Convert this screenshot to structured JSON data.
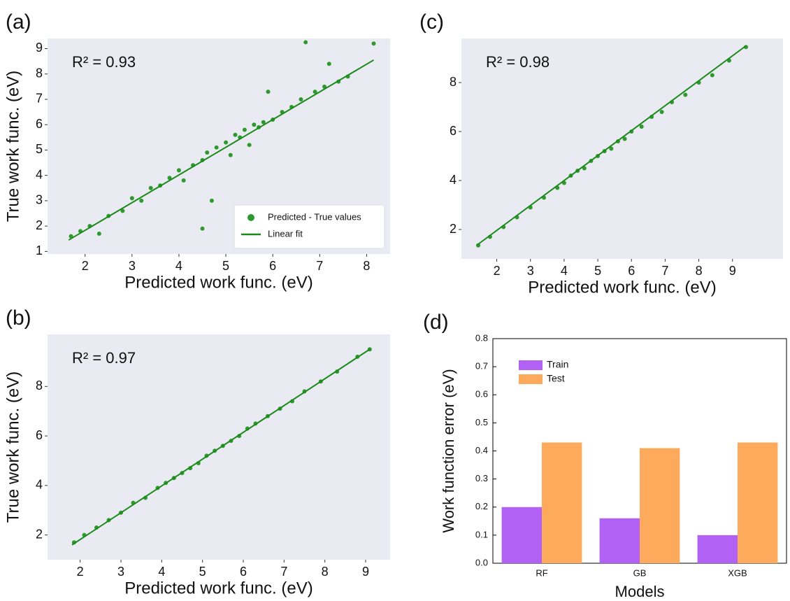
{
  "chart_data": [
    {
      "type": "scatter",
      "panel_label": "(a)",
      "annotation": "R² = 0.93",
      "x_label": "Predicted work func. (eV)",
      "y_label": "True work func. (eV)",
      "xlim": [
        1.2,
        8.5
      ],
      "ylim": [
        0.9,
        9.4
      ],
      "xticks": [
        2,
        3,
        4,
        5,
        6,
        7,
        8
      ],
      "yticks": [
        1,
        2,
        3,
        4,
        5,
        6,
        7,
        8,
        9
      ],
      "legend": "lower right",
      "series": [
        {
          "name": "Predicted - True values",
          "color": "#2e9a2e",
          "x": [
            1.7,
            1.9,
            2.1,
            2.3,
            2.5,
            2.8,
            3.0,
            3.2,
            3.4,
            3.6,
            3.8,
            4.0,
            4.1,
            4.3,
            4.5,
            4.5,
            4.6,
            4.7,
            4.8,
            5.0,
            5.1,
            5.2,
            5.3,
            5.4,
            5.5,
            5.6,
            5.7,
            5.8,
            5.9,
            6.0,
            6.2,
            6.4,
            6.6,
            6.7,
            6.9,
            7.1,
            7.2,
            7.4,
            7.6,
            8.15
          ],
          "values": [
            1.6,
            1.8,
            2.0,
            1.7,
            2.4,
            2.6,
            3.1,
            3.0,
            3.5,
            3.6,
            3.9,
            4.2,
            3.8,
            4.4,
            4.6,
            1.9,
            4.9,
            3.0,
            5.1,
            5.3,
            4.8,
            5.6,
            5.5,
            5.8,
            5.2,
            6.0,
            5.9,
            6.1,
            7.3,
            6.2,
            6.5,
            6.7,
            7.0,
            9.25,
            7.3,
            7.5,
            8.4,
            7.7,
            7.9,
            9.2
          ]
        },
        {
          "name": "Linear fit",
          "type": "line",
          "color": "#1a8a1a",
          "x": [
            1.65,
            8.15
          ],
          "values": [
            1.45,
            8.55
          ]
        }
      ]
    },
    {
      "type": "scatter",
      "panel_label": "(b)",
      "annotation": "R² = 0.97",
      "x_label": "Predicted work func. (eV)",
      "y_label": "True work func. (eV)",
      "xlim": [
        1.2,
        9.6
      ],
      "ylim": [
        1.0,
        10.1
      ],
      "xticks": [
        2,
        3,
        4,
        5,
        6,
        7,
        8,
        9
      ],
      "yticks": [
        2,
        4,
        6,
        8
      ],
      "series": [
        {
          "color": "#2e9a2e",
          "x": [
            1.85,
            2.1,
            2.4,
            2.7,
            3.0,
            3.3,
            3.6,
            3.9,
            4.1,
            4.3,
            4.5,
            4.7,
            4.9,
            5.1,
            5.3,
            5.5,
            5.7,
            5.9,
            6.1,
            6.3,
            6.6,
            6.9,
            7.2,
            7.5,
            7.9,
            8.3,
            8.8,
            9.1
          ],
          "values": [
            1.7,
            2.0,
            2.3,
            2.6,
            2.9,
            3.3,
            3.5,
            3.9,
            4.1,
            4.3,
            4.5,
            4.7,
            4.9,
            5.2,
            5.4,
            5.6,
            5.8,
            6.0,
            6.3,
            6.5,
            6.8,
            7.1,
            7.4,
            7.8,
            8.2,
            8.6,
            9.2,
            9.5
          ]
        },
        {
          "type": "line",
          "color": "#1a8a1a",
          "x": [
            1.8,
            9.1
          ],
          "values": [
            1.6,
            9.5
          ]
        }
      ]
    },
    {
      "type": "scatter",
      "panel_label": "(c)",
      "annotation": "R² = 0.98",
      "x_label": "Predicted work func. (eV)",
      "xlim": [
        0.95,
        10.5
      ],
      "ylim": [
        0.8,
        9.8
      ],
      "xticks": [
        2,
        3,
        4,
        5,
        6,
        7,
        8,
        9
      ],
      "yticks": [
        2,
        4,
        6,
        8
      ],
      "series": [
        {
          "color": "#2e9a2e",
          "x": [
            1.45,
            1.8,
            2.2,
            2.6,
            3.0,
            3.4,
            3.8,
            4.0,
            4.2,
            4.4,
            4.6,
            4.8,
            5.0,
            5.2,
            5.4,
            5.6,
            5.8,
            6.0,
            6.3,
            6.6,
            6.9,
            7.2,
            7.6,
            8.0,
            8.4,
            8.9,
            9.4
          ],
          "values": [
            1.35,
            1.7,
            2.1,
            2.5,
            2.9,
            3.3,
            3.7,
            3.9,
            4.2,
            4.4,
            4.5,
            4.8,
            5.0,
            5.2,
            5.3,
            5.6,
            5.7,
            6.0,
            6.2,
            6.6,
            6.8,
            7.2,
            7.5,
            8.0,
            8.3,
            8.9,
            9.45
          ]
        },
        {
          "type": "line",
          "color": "#1a8a1a",
          "x": [
            1.4,
            9.4
          ],
          "values": [
            1.35,
            9.5
          ]
        }
      ]
    },
    {
      "type": "bar",
      "panel_label": "(d)",
      "x_label": "Models",
      "y_label": "Work function error (eV)",
      "categories": [
        "RF",
        "GB",
        "XGB"
      ],
      "ylim": [
        0,
        0.8
      ],
      "yticks": [
        {
          "value": 0,
          "label": "0.0"
        },
        0.1,
        0.2,
        0.3,
        0.4,
        0.5,
        0.6,
        0.7,
        0.8
      ],
      "legend": "upper left",
      "series": [
        {
          "name": "Train",
          "color": "#b162f5",
          "values": [
            0.2,
            0.16,
            0.1
          ]
        },
        {
          "name": "Test",
          "color": "#fdaa5c",
          "values": [
            0.43,
            0.41,
            0.43
          ]
        }
      ]
    }
  ]
}
